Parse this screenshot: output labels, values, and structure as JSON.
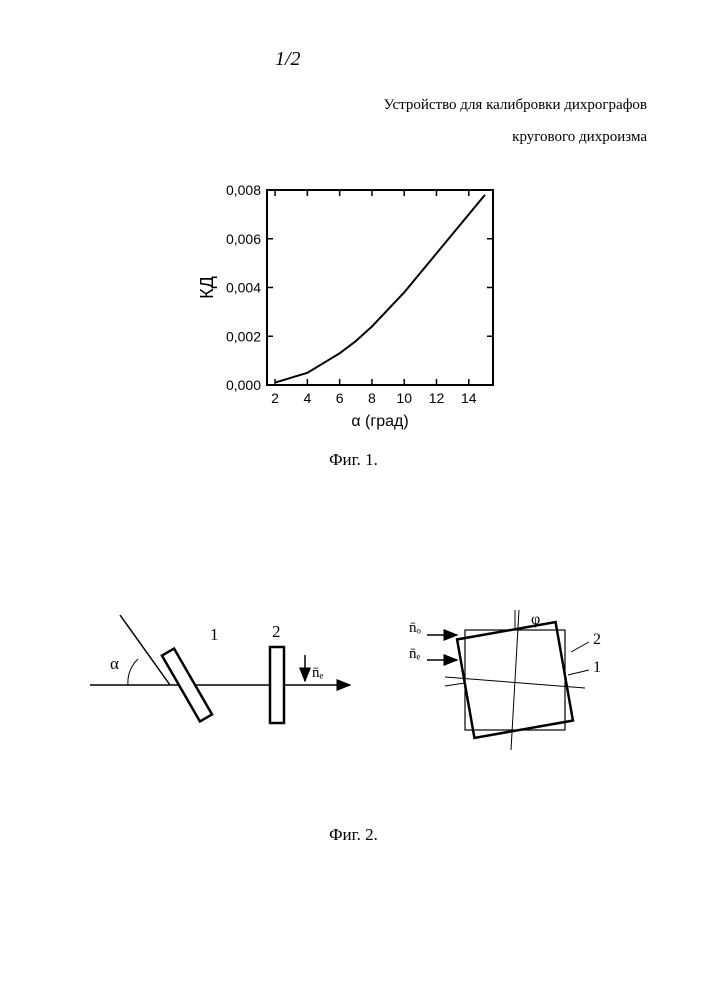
{
  "page_number": "1/2",
  "title_line1": "Устройство для калибровки дихрографов",
  "title_line2": "кругового дихроизма",
  "fig1": {
    "type": "line",
    "caption": "Фиг. 1.",
    "xlabel": "α (град)",
    "ylabel": "КД",
    "xlim": [
      1.5,
      15.5
    ],
    "ylim": [
      0,
      0.008
    ],
    "yticks": [
      0,
      0.002,
      0.004,
      0.006,
      0.008
    ],
    "ytick_labels": [
      "0,000",
      "0,002",
      "0,004",
      "0,006",
      "0,008"
    ],
    "xticks": [
      2,
      4,
      6,
      8,
      10,
      12,
      14
    ],
    "series": {
      "x": [
        2,
        3,
        4,
        5,
        6,
        7,
        8,
        9,
        10,
        11,
        12,
        13,
        14,
        15
      ],
      "y": [
        0.0001,
        0.0003,
        0.0005,
        0.0009,
        0.0013,
        0.0018,
        0.0024,
        0.0031,
        0.0038,
        0.0046,
        0.0054,
        0.0062,
        0.007,
        0.0078
      ]
    },
    "line_color": "#000000",
    "line_width": 2,
    "axis_color": "#000000",
    "tick_font_size": 14,
    "label_font_size": 16,
    "background_color": "#ffffff",
    "grid": false
  },
  "fig2": {
    "type": "diagram",
    "caption": "Фиг. 2.",
    "labels": {
      "alpha": "α",
      "phi": "φ",
      "elem1": "1",
      "elem2": "2",
      "ne": "n̄ₑ",
      "no": "n̄ₒ"
    },
    "colors": {
      "stroke": "#000000",
      "fill": "#ffffff"
    },
    "line_width": 1.5,
    "line_width_heavy": 2.5
  }
}
